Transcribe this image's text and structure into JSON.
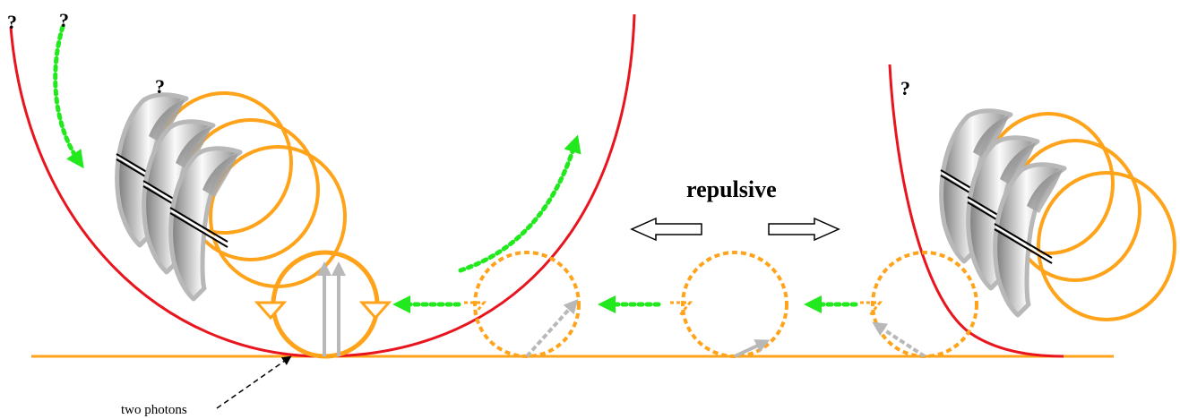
{
  "labels": {
    "q1": "?",
    "q2": "?",
    "q3": "?",
    "q4": "?",
    "repulsive": "repulsive",
    "two_photons": "two photons"
  },
  "colors": {
    "orbit": "#ffa31a",
    "boundary": "#e8141e",
    "flow_arrow": "#22e81e",
    "vector": "#b8b8b8",
    "ground": "#ffa31a"
  },
  "icons": {
    "mirror": "curved-mirror-segment",
    "block_arrow": "hollow-block-arrow",
    "flow": "dotted-arrow"
  }
}
